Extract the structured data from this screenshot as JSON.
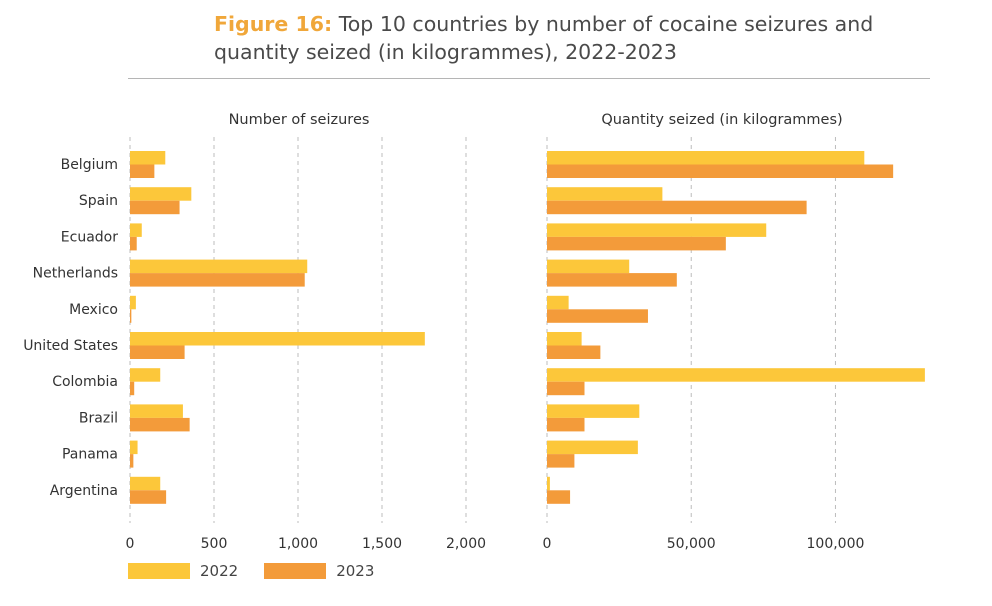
{
  "title_prefix": "Figure 16:",
  "title_text": "Top 10 countries by number of cocaine seizures and quantity seized (in kilogrammes), 2022-2023",
  "colors": {
    "y2022": "#fcc73a",
    "y2023": "#f39b3a",
    "accent": "#f0a73a"
  },
  "legend": [
    {
      "label": "2022",
      "color": "#fcc73a"
    },
    {
      "label": "2023",
      "color": "#f39b3a"
    }
  ],
  "chart_data": [
    {
      "type": "bar",
      "orientation": "horizontal",
      "title": "Number of seizures",
      "categories": [
        "Belgium",
        "Spain",
        "Ecuador",
        "Netherlands",
        "Mexico",
        "United States",
        "Colombia",
        "Brazil",
        "Panama",
        "Argentina"
      ],
      "series": [
        {
          "name": "2022",
          "values": [
            210,
            365,
            70,
            1055,
            35,
            1755,
            180,
            315,
            45,
            180
          ]
        },
        {
          "name": "2023",
          "values": [
            145,
            295,
            40,
            1040,
            8,
            325,
            25,
            355,
            20,
            215
          ]
        }
      ],
      "xlim": [
        0,
        2000
      ],
      "xticks": [
        0,
        500,
        1000,
        1500,
        2000
      ],
      "xtick_labels": [
        "0",
        "500",
        "1,000",
        "1,500",
        "2,000"
      ],
      "grid": true
    },
    {
      "type": "bar",
      "orientation": "horizontal",
      "title": "Quantity seized (in kilogrammes)",
      "categories": [
        "Belgium",
        "Spain",
        "Ecuador",
        "Netherlands",
        "Mexico",
        "United States",
        "Colombia",
        "Brazil",
        "Panama",
        "Argentina"
      ],
      "series": [
        {
          "name": "2022",
          "values": [
            110000,
            40000,
            76000,
            28500,
            7500,
            12000,
            131000,
            32000,
            31500,
            1000
          ]
        },
        {
          "name": "2023",
          "values": [
            120000,
            90000,
            62000,
            45000,
            35000,
            18500,
            13000,
            13000,
            9500,
            8000
          ]
        }
      ],
      "xlim": [
        0,
        130000
      ],
      "xticks": [
        0,
        50000,
        100000
      ],
      "xtick_labels": [
        "0",
        "50,000",
        "100,000"
      ],
      "grid": true
    }
  ]
}
